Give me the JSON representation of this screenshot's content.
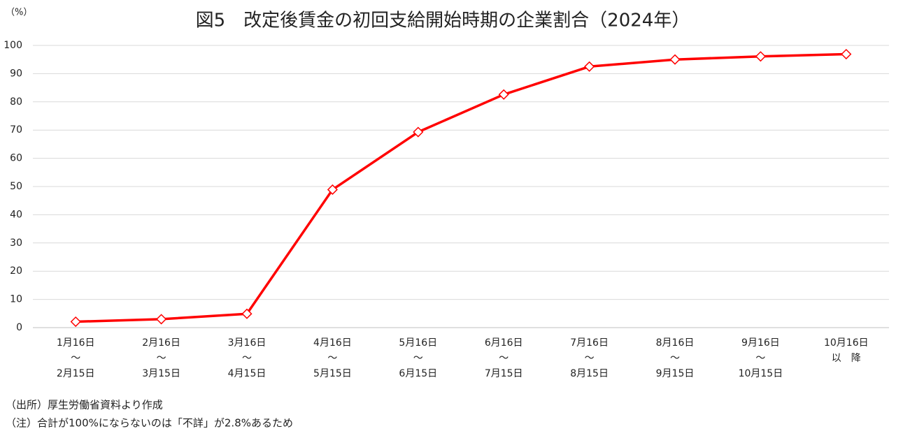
{
  "chart_data": {
    "type": "line",
    "title": "図5　改定後賃金の初回支給開始時期の企業割合（2024年）",
    "y_label": "（%）",
    "categories": [
      [
        "1月16日",
        "～",
        "2月15日"
      ],
      [
        "2月16日",
        "～",
        "3月15日"
      ],
      [
        "3月16日",
        "～",
        "4月15日"
      ],
      [
        "4月16日",
        "～",
        "5月15日"
      ],
      [
        "5月16日",
        "～",
        "6月15日"
      ],
      [
        "6月16日",
        "～",
        "7月15日"
      ],
      [
        "7月16日",
        "～",
        "8月15日"
      ],
      [
        "8月16日",
        "～",
        "9月15日"
      ],
      [
        "9月16日",
        "～",
        "10月15日"
      ],
      [
        "10月16日",
        "以　降"
      ]
    ],
    "values": [
      2.1,
      3.0,
      4.9,
      48.9,
      69.3,
      82.6,
      92.5,
      95.0,
      96.1,
      96.9
    ],
    "color": "#ff0000",
    "ylim": [
      0,
      100
    ],
    "yticks": [
      0,
      10,
      20,
      30,
      40,
      50,
      60,
      70,
      80,
      90,
      100
    ],
    "grid": true,
    "notes": [
      "（出所）厚生労働省資料より作成",
      "（注）合計が100%にならないのは「不詳」が2.8%あるため"
    ]
  }
}
